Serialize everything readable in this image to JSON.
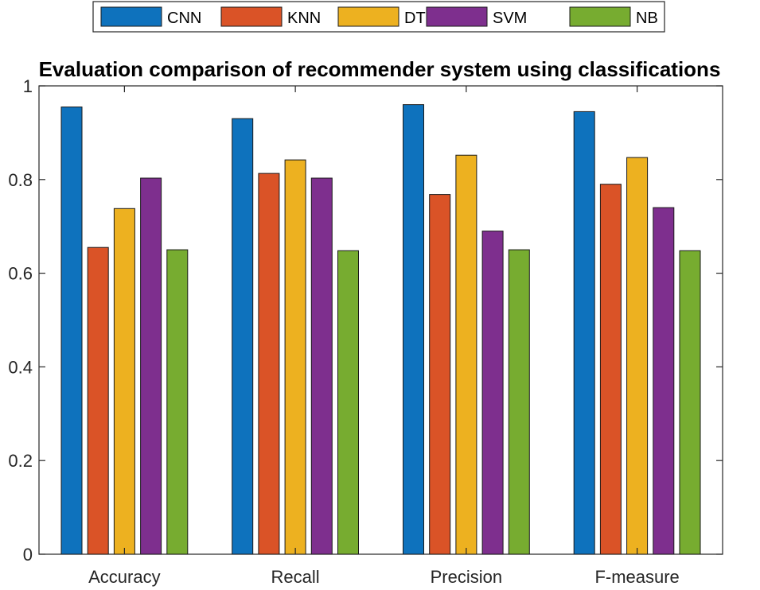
{
  "chart_data": {
    "type": "bar",
    "title": "Evaluation comparison of recommender system using classifications",
    "xlabel": "",
    "ylabel": "",
    "categories": [
      "Accuracy",
      "Recall",
      "Precision",
      "F-measure"
    ],
    "ylim": [
      0,
      1
    ],
    "yticks": [
      0,
      0.2,
      0.4,
      0.6,
      0.8,
      1
    ],
    "ytick_labels": [
      "0",
      "0.2",
      "0.4",
      "0.6",
      "0.8",
      "1"
    ],
    "legend_position": "top, outside, horizontal",
    "grid": false,
    "series": [
      {
        "name": "CNN",
        "color": "#0e72bd",
        "values": [
          0.955,
          0.93,
          0.96,
          0.945
        ]
      },
      {
        "name": "KNN",
        "color": "#da5327",
        "values": [
          0.655,
          0.813,
          0.768,
          0.79
        ]
      },
      {
        "name": "DT",
        "color": "#edb120",
        "values": [
          0.738,
          0.842,
          0.852,
          0.847
        ]
      },
      {
        "name": "SVM",
        "color": "#7e2f8e",
        "values": [
          0.803,
          0.803,
          0.69,
          0.74
        ]
      },
      {
        "name": "NB",
        "color": "#77ac30",
        "values": [
          0.65,
          0.648,
          0.65,
          0.648
        ]
      }
    ]
  }
}
